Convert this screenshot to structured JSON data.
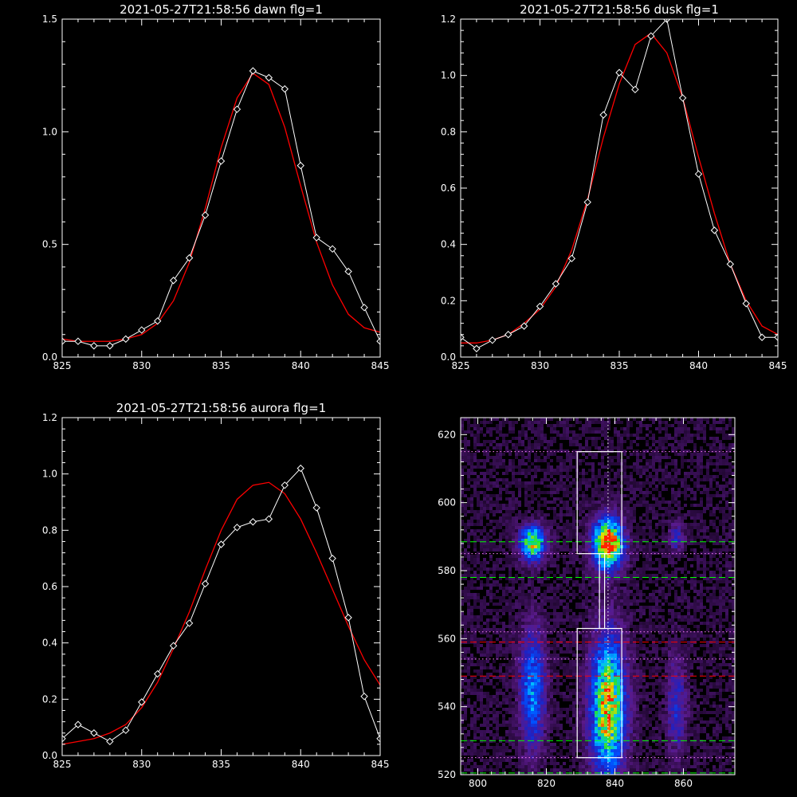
{
  "chart_data": [
    {
      "type": "line",
      "title": "2021-05-27T21:58:56 dawn flg=1",
      "xlim": [
        825,
        845
      ],
      "ylim": [
        0.0,
        1.5
      ],
      "xticks": [
        "825",
        "830",
        "835",
        "840",
        "845"
      ],
      "yticks": [
        "0.0",
        "0.5",
        "1.0",
        "1.5"
      ],
      "series": [
        {
          "color": "#ffffff",
          "marker": "diamond",
          "x": [
            825,
            826,
            827,
            828,
            829,
            830,
            831,
            832,
            833,
            834,
            835,
            836,
            837,
            838,
            839,
            840,
            841,
            842,
            843,
            844,
            845
          ],
          "y": [
            0.07,
            0.07,
            0.05,
            0.05,
            0.08,
            0.12,
            0.16,
            0.34,
            0.44,
            0.63,
            0.87,
            1.1,
            1.27,
            1.24,
            1.19,
            0.85,
            0.53,
            0.48,
            0.38,
            0.22,
            0.07
          ]
        },
        {
          "color": "#ff0000",
          "marker": "none",
          "x": [
            825,
            826,
            827,
            828,
            829,
            830,
            831,
            832,
            833,
            834,
            835,
            836,
            837,
            838,
            839,
            840,
            841,
            842,
            843,
            844,
            845
          ],
          "y": [
            0.08,
            0.07,
            0.07,
            0.07,
            0.08,
            0.1,
            0.15,
            0.25,
            0.42,
            0.66,
            0.93,
            1.15,
            1.26,
            1.21,
            1.02,
            0.76,
            0.51,
            0.32,
            0.19,
            0.13,
            0.11
          ]
        }
      ]
    },
    {
      "type": "line",
      "title": "2021-05-27T21:58:56 dusk flg=1",
      "xlim": [
        825,
        845
      ],
      "ylim": [
        0.0,
        1.2
      ],
      "xticks": [
        "825",
        "830",
        "835",
        "840",
        "845"
      ],
      "yticks": [
        "0.0",
        "0.2",
        "0.4",
        "0.6",
        "0.8",
        "1.0",
        "1.2"
      ],
      "series": [
        {
          "color": "#ffffff",
          "marker": "diamond",
          "x": [
            825,
            826,
            827,
            828,
            829,
            830,
            831,
            832,
            833,
            834,
            835,
            836,
            837,
            838,
            839,
            840,
            841,
            842,
            843,
            844,
            845
          ],
          "y": [
            0.07,
            0.03,
            0.06,
            0.08,
            0.11,
            0.18,
            0.26,
            0.35,
            0.55,
            0.86,
            1.01,
            0.95,
            1.14,
            1.2,
            0.92,
            0.65,
            0.45,
            0.33,
            0.19,
            0.07,
            0.07
          ]
        },
        {
          "color": "#ff0000",
          "marker": "none",
          "x": [
            825,
            826,
            827,
            828,
            829,
            830,
            831,
            832,
            833,
            834,
            835,
            836,
            837,
            838,
            839,
            840,
            841,
            842,
            843,
            844,
            845
          ],
          "y": [
            0.05,
            0.05,
            0.06,
            0.08,
            0.12,
            0.17,
            0.25,
            0.38,
            0.56,
            0.78,
            0.97,
            1.11,
            1.15,
            1.08,
            0.92,
            0.71,
            0.51,
            0.33,
            0.2,
            0.11,
            0.08
          ]
        }
      ]
    },
    {
      "type": "line",
      "title": "2021-05-27T21:58:56 aurora flg=1",
      "xlim": [
        825,
        845
      ],
      "ylim": [
        0.0,
        1.2
      ],
      "xticks": [
        "825",
        "830",
        "835",
        "840",
        "845"
      ],
      "yticks": [
        "0.0",
        "0.2",
        "0.4",
        "0.6",
        "0.8",
        "1.0",
        "1.2"
      ],
      "series": [
        {
          "color": "#ffffff",
          "marker": "diamond",
          "x": [
            825,
            826,
            827,
            828,
            829,
            830,
            831,
            832,
            833,
            834,
            835,
            836,
            837,
            838,
            839,
            840,
            841,
            842,
            843,
            844,
            845
          ],
          "y": [
            0.06,
            0.11,
            0.08,
            0.05,
            0.09,
            0.19,
            0.29,
            0.39,
            0.47,
            0.61,
            0.75,
            0.81,
            0.83,
            0.84,
            0.96,
            1.02,
            0.88,
            0.7,
            0.49,
            0.21,
            0.06
          ]
        },
        {
          "color": "#ff0000",
          "marker": "none",
          "x": [
            825,
            826,
            827,
            828,
            829,
            830,
            831,
            832,
            833,
            834,
            835,
            836,
            837,
            838,
            839,
            840,
            841,
            842,
            843,
            844,
            845
          ],
          "y": [
            0.04,
            0.05,
            0.06,
            0.08,
            0.11,
            0.17,
            0.26,
            0.38,
            0.51,
            0.66,
            0.8,
            0.91,
            0.96,
            0.97,
            0.93,
            0.84,
            0.72,
            0.59,
            0.46,
            0.34,
            0.25
          ]
        }
      ]
    },
    {
      "type": "heatmap",
      "title": "",
      "xlim": [
        795,
        875
      ],
      "ylim": [
        520,
        625
      ],
      "xticks": [
        "800",
        "820",
        "840",
        "860"
      ],
      "yticks": [
        "520",
        "540",
        "560",
        "580",
        "600",
        "620"
      ],
      "colormap": [
        "#000000",
        "#2a0a40",
        "#5a1a8a",
        "#2020c0",
        "#0050ff",
        "#00c0ff",
        "#20e040",
        "#e0e000",
        "#ff2000"
      ],
      "blobs": [
        {
          "x": 816,
          "y": 588,
          "sx": 2.5,
          "sy": 3.5,
          "peak": 0.72
        },
        {
          "x": 838,
          "y": 588,
          "sx": 3.0,
          "sy": 5.0,
          "peak": 1.0
        },
        {
          "x": 816,
          "y": 545,
          "sx": 2.5,
          "sy": 12.0,
          "peak": 0.45
        },
        {
          "x": 838,
          "y": 540,
          "sx": 3.5,
          "sy": 14.0,
          "peak": 0.78
        },
        {
          "x": 858,
          "y": 540,
          "sx": 2.0,
          "sy": 10.0,
          "peak": 0.25
        },
        {
          "x": 858,
          "y": 590,
          "sx": 1.5,
          "sy": 3.0,
          "peak": 0.25
        }
      ],
      "boxes": [
        {
          "x": [
            829,
            842
          ],
          "y": [
            585,
            615
          ],
          "color": "#ffffff"
        },
        {
          "x": [
            829,
            842
          ],
          "y": [
            525,
            563
          ],
          "color": "#ffffff"
        }
      ],
      "connector": {
        "x": [
          835.5,
          837.0
        ],
        "y": [
          563,
          585
        ],
        "color": "#ffffff"
      },
      "vlines": [
        {
          "x": 838,
          "color": "#ffffff",
          "style": "dotted"
        }
      ],
      "hlines": [
        {
          "y": 615,
          "color": "#ff80ff",
          "style": "dotted"
        },
        {
          "y": 588.5,
          "color": "#00ff00",
          "style": "dashed"
        },
        {
          "y": 585,
          "color": "#ff80ff",
          "style": "dotted"
        },
        {
          "y": 578,
          "color": "#00ff00",
          "style": "dashed"
        },
        {
          "y": 562,
          "color": "#ff80ff",
          "style": "dotted"
        },
        {
          "y": 559,
          "color": "#ff0000",
          "style": "dashed"
        },
        {
          "y": 554,
          "color": "#ff80ff",
          "style": "dotted"
        },
        {
          "y": 549,
          "color": "#ff0000",
          "style": "dashed"
        },
        {
          "y": 530,
          "color": "#00ff00",
          "style": "dashed"
        },
        {
          "y": 525,
          "color": "#ff80ff",
          "style": "dotted"
        },
        {
          "y": 520.5,
          "color": "#00ff00",
          "style": "dashed"
        }
      ]
    }
  ]
}
